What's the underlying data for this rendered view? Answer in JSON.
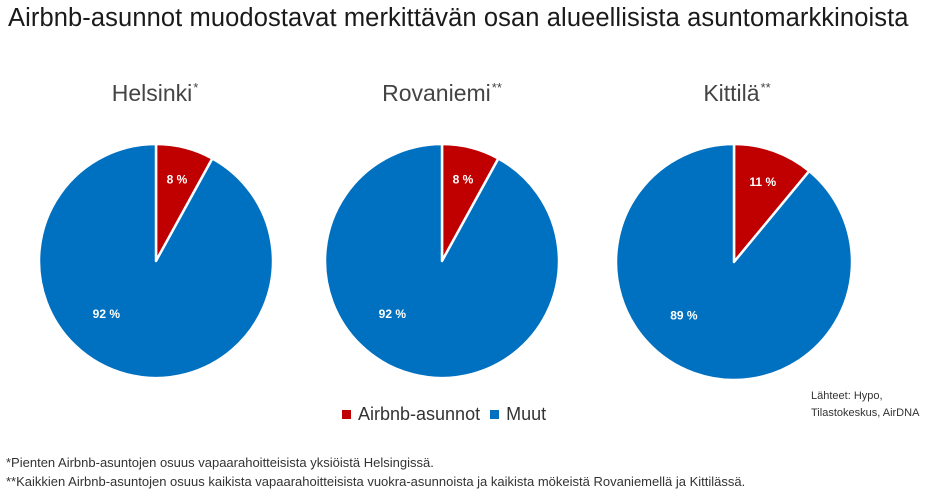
{
  "title": "Airbnb-asunnot muodostavat merkittävän osan alueellisista asuntomarkkinoista",
  "colors": {
    "airbnb": "#c00000",
    "muut": "#0070c0"
  },
  "chart_data": [
    {
      "type": "pie",
      "title": "Helsinki",
      "title_mark": "*",
      "slices": [
        {
          "label": "Airbnb-asunnot",
          "value": 8,
          "data_label": "8 %"
        },
        {
          "label": "Muut",
          "value": 92,
          "data_label": "92 %"
        }
      ]
    },
    {
      "type": "pie",
      "title": "Rovaniemi",
      "title_mark": "**",
      "slices": [
        {
          "label": "Airbnb-asunnot",
          "value": 8,
          "data_label": "8 %"
        },
        {
          "label": "Muut",
          "value": 92,
          "data_label": "92 %"
        }
      ]
    },
    {
      "type": "pie",
      "title": "Kittilä",
      "title_mark": "**",
      "slices": [
        {
          "label": "Airbnb-asunnot",
          "value": 11,
          "data_label": "11 %"
        },
        {
          "label": "Muut",
          "value": 89,
          "data_label": "89 %"
        }
      ]
    }
  ],
  "legend": [
    "Airbnb-asunnot",
    "Muut"
  ],
  "sources": {
    "line1": "Lähteet: Hypo,",
    "line2": "Tilastokeskus, AirDNA"
  },
  "footnotes": [
    "*Pienten Airbnb-asuntojen osuus vapaarahoitteisista yksiöistä Helsingissä.",
    "**Kaikkien Airbnb-asuntojen osuus kaikista vapaarahoitteisista vuokra-asunnoista ja kaikista mökeistä Rovaniemellä ja Kittilässä."
  ]
}
